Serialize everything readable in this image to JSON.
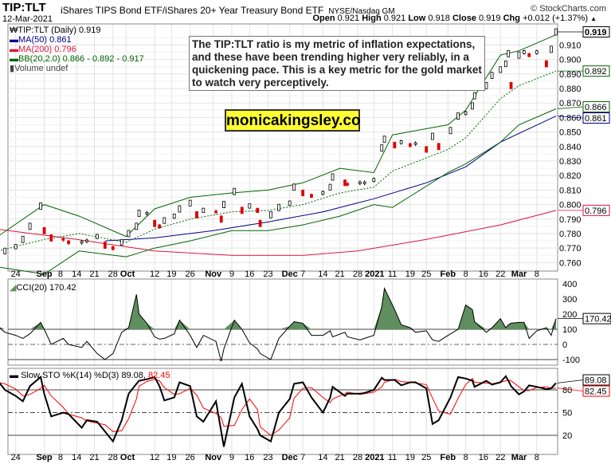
{
  "header": {
    "symbol": "TIP:TLT",
    "name": "iShares TIPS Bond ETF/iShares 20+ Year Treasury Bond ETF",
    "exchange": "NYSE/Nasdaq GM",
    "brand": "© StockCharts.com",
    "date": "12-Mar-2021",
    "open_label": "Open",
    "open": "0.921",
    "high_label": "High",
    "high": "0.921",
    "low_label": "Low",
    "low": "0.918",
    "close_label": "Close",
    "close": "0.919",
    "chg_label": "Chg",
    "chg": "+0.012 (+1.37%)",
    "chg_icon": "triangle-up-icon"
  },
  "legend": {
    "price": "TIP:TLT (Daily) 0.919",
    "ma50": "MA(50) 0.861",
    "ma200": "MA(200) 0.796",
    "bb": "BB(20,2.0) 0.866 - 0.892 - 0.917",
    "volume": "Volume undef",
    "cci": "CCI(20) 170.42",
    "sto": "Slow STO %K(14) %D(3) 89.08,",
    "sto_d": "82.45"
  },
  "annotation": {
    "text": "The TIP:TLT ratio is my metric of inflation expectations, and these have been trending higher very reliably, in a quickening pace. This is a key metric for the gold market to watch very perceptively.",
    "site": "monicakingsley.co"
  },
  "colors": {
    "ma50": "#00008b",
    "ma200": "#dc143c",
    "bb": "#006400",
    "cci_fill": "#5f8f5f",
    "cci_neg": "#c06070",
    "sto_k": "#000000",
    "sto_d": "#ff0000",
    "grid": "#dddddd"
  },
  "chart_data": [
    {
      "type": "candlestick",
      "title": "TIP:TLT (Daily)",
      "ylim": [
        0.755,
        0.922
      ],
      "grid": true,
      "legend_position": "top-left",
      "y_ticks": [
        "0.760",
        "0.770",
        "0.780",
        "0.790",
        "0.800",
        "0.810",
        "0.820",
        "0.830",
        "0.840",
        "0.850",
        "0.860",
        "0.870",
        "0.880",
        "0.890",
        "0.900",
        "0.910"
      ],
      "value_tags": [
        {
          "label": "0.919",
          "color": "#000000"
        },
        {
          "label": "0.892",
          "color": "#006400"
        },
        {
          "label": "0.866",
          "color": "#006400"
        },
        {
          "label": "0.861",
          "color": "#00008b"
        },
        {
          "label": "0.796",
          "color": "#dc143c"
        }
      ],
      "dates": [
        "2020-08-19",
        "2020-08-21",
        "2020-08-24",
        "2020-08-26",
        "2020-08-28",
        "2020-08-31",
        "2020-09-01",
        "2020-09-04",
        "2020-09-09",
        "2020-09-11",
        "2020-09-16",
        "2020-09-18",
        "2020-09-22",
        "2020-09-25",
        "2020-09-28",
        "2020-09-30",
        "2020-10-02",
        "2020-10-05",
        "2020-10-06",
        "2020-10-09",
        "2020-10-12",
        "2020-10-14",
        "2020-10-16",
        "2020-10-20",
        "2020-10-22",
        "2020-10-26",
        "2020-10-28",
        "2020-10-30",
        "2020-11-03",
        "2020-11-05",
        "2020-11-06",
        "2020-11-10",
        "2020-11-13",
        "2020-11-16",
        "2020-11-19",
        "2020-11-20",
        "2020-11-24",
        "2020-11-27",
        "2020-12-01",
        "2020-12-03",
        "2020-12-07",
        "2020-12-10",
        "2020-12-14",
        "2020-12-17",
        "2020-12-18",
        "2020-12-23",
        "2020-12-24",
        "2020-12-29",
        "2020-12-31",
        "2021-01-04",
        "2021-01-07",
        "2021-01-08",
        "2021-01-12",
        "2021-01-15",
        "2021-01-19",
        "2021-01-21",
        "2021-01-25",
        "2021-01-27",
        "2021-01-29",
        "2021-02-02",
        "2021-02-05",
        "2021-02-08",
        "2021-02-11",
        "2021-02-12",
        "2021-02-17",
        "2021-02-19",
        "2021-02-22",
        "2021-02-24",
        "2021-02-25",
        "2021-02-26",
        "2021-03-01",
        "2021-03-03",
        "2021-03-05",
        "2021-03-08",
        "2021-03-10",
        "2021-03-11",
        "2021-03-12"
      ],
      "close": [
        0.764,
        0.768,
        0.771,
        0.776,
        0.785,
        0.799,
        0.782,
        0.777,
        0.776,
        0.774,
        0.774,
        0.775,
        0.778,
        0.772,
        0.77,
        0.774,
        0.78,
        0.785,
        0.794,
        0.794,
        0.787,
        0.785,
        0.789,
        0.792,
        0.797,
        0.801,
        0.793,
        0.796,
        0.795,
        0.79,
        0.8,
        0.809,
        0.796,
        0.799,
        0.796,
        0.787,
        0.793,
        0.798,
        0.801,
        0.812,
        0.808,
        0.806,
        0.808,
        0.812,
        0.819,
        0.815,
        0.814,
        0.815,
        0.815,
        0.817,
        0.839,
        0.845,
        0.841,
        0.843,
        0.841,
        0.842,
        0.838,
        0.847,
        0.84,
        0.851,
        0.861,
        0.863,
        0.868,
        0.875,
        0.882,
        0.889,
        0.893,
        0.897,
        0.904,
        0.882,
        0.903,
        0.905,
        0.903,
        0.905,
        0.897,
        0.907,
        0.919
      ],
      "ma50": {
        "dates": [
          "2020-09-25",
          "2020-10-12",
          "2020-11-02",
          "2020-11-23",
          "2020-12-14",
          "2021-01-04",
          "2021-01-25",
          "2021-02-08",
          "2021-02-22",
          "2021-03-12"
        ],
        "values": [
          0.775,
          0.777,
          0.782,
          0.788,
          0.795,
          0.804,
          0.815,
          0.826,
          0.843,
          0.861
        ]
      },
      "ma200": {
        "dates": [
          "2020-08-19",
          "2020-09-14",
          "2020-10-12",
          "2020-11-09",
          "2020-12-07",
          "2020-12-28",
          "2021-01-25",
          "2021-02-22",
          "2021-03-12"
        ],
        "values": [
          0.783,
          0.776,
          0.768,
          0.765,
          0.765,
          0.768,
          0.776,
          0.786,
          0.796
        ]
      },
      "bb": {
        "dates": [
          "2020-08-19",
          "2020-09-01",
          "2020-09-15",
          "2020-10-01",
          "2020-10-12",
          "2020-10-26",
          "2020-11-09",
          "2020-11-23",
          "2020-12-07",
          "2020-12-21",
          "2021-01-04",
          "2021-01-11",
          "2021-02-01",
          "2021-02-08",
          "2021-02-22",
          "2021-03-01",
          "2021-03-12"
        ],
        "upper": [
          0.778,
          0.8,
          0.792,
          0.778,
          0.797,
          0.805,
          0.808,
          0.81,
          0.815,
          0.825,
          0.822,
          0.848,
          0.855,
          0.865,
          0.903,
          0.906,
          0.917
        ],
        "middle": [
          0.768,
          0.776,
          0.78,
          0.774,
          0.783,
          0.79,
          0.795,
          0.796,
          0.8,
          0.808,
          0.812,
          0.823,
          0.838,
          0.846,
          0.873,
          0.882,
          0.892
        ],
        "lower": [
          0.757,
          0.752,
          0.768,
          0.764,
          0.77,
          0.775,
          0.782,
          0.782,
          0.786,
          0.792,
          0.8,
          0.798,
          0.822,
          0.828,
          0.843,
          0.855,
          0.866
        ]
      }
    },
    {
      "type": "area",
      "title": "CCI(20)",
      "ylim": [
        -150,
        420
      ],
      "y_ticks": [
        "400",
        "300",
        "200",
        "100",
        "0",
        "-100"
      ],
      "ref_lines": [
        100,
        0,
        -100
      ],
      "last_tag": "170.42",
      "values": [
        120,
        80,
        60,
        40,
        70,
        145,
        100,
        0,
        40,
        0,
        -20,
        20,
        -60,
        -100,
        -60,
        80,
        110,
        330,
        200,
        140,
        50,
        35,
        40,
        70,
        160,
        60,
        -20,
        60,
        20,
        -110,
        -30,
        160,
        100,
        10,
        -30,
        -60,
        -100,
        40,
        120,
        150,
        140,
        60,
        60,
        90,
        50,
        80,
        50,
        30,
        40,
        60,
        250,
        370,
        230,
        130,
        110,
        80,
        90,
        30,
        20,
        70,
        100,
        260,
        230,
        150,
        80,
        110,
        170,
        110,
        130,
        140,
        145,
        145,
        40,
        90,
        110,
        60,
        170.42
      ]
    },
    {
      "type": "line",
      "title": "Slow STO %K(14) %D(3)",
      "ylim": [
        -5,
        105
      ],
      "y_ticks": [
        "80",
        "50",
        "20"
      ],
      "ref_lines": [
        80,
        50,
        20
      ],
      "last_tags": [
        "89.08",
        "82.45"
      ],
      "series": [
        {
          "name": "%K",
          "values": [
            92,
            80,
            72,
            65,
            85,
            97,
            75,
            45,
            50,
            48,
            30,
            40,
            38,
            25,
            12,
            40,
            75,
            88,
            92,
            94,
            97,
            85,
            66,
            70,
            90,
            85,
            45,
            38,
            65,
            25,
            5,
            70,
            88,
            45,
            28,
            20,
            12,
            50,
            68,
            88,
            90,
            70,
            50,
            70,
            84,
            72,
            75,
            75,
            76,
            80,
            96,
            93,
            93,
            86,
            90,
            90,
            82,
            35,
            40,
            70,
            97,
            95,
            92,
            84,
            92,
            87,
            90,
            98,
            92,
            85,
            74,
            78,
            86,
            84,
            81,
            82,
            89.08
          ]
        },
        {
          "name": "%D",
          "values": [
            90,
            88,
            81,
            72,
            74,
            82,
            86,
            72,
            57,
            48,
            43,
            39,
            36,
            34,
            25,
            26,
            42,
            68,
            85,
            91,
            94,
            92,
            83,
            74,
            75,
            82,
            73,
            56,
            49,
            43,
            32,
            33,
            54,
            68,
            54,
            31,
            20,
            27,
            43,
            69,
            82,
            83,
            70,
            63,
            68,
            75,
            77,
            74,
            75,
            77,
            84,
            90,
            94,
            91,
            90,
            89,
            87,
            69,
            52,
            48,
            69,
            87,
            95,
            90,
            89,
            88,
            90,
            92,
            93,
            92,
            84,
            79,
            79,
            83,
            84,
            82,
            82.45
          ]
        }
      ]
    }
  ],
  "x_axis": {
    "ticks": [
      {
        "d": "2020-08-24",
        "l": "24"
      },
      {
        "d": "2020-09-01",
        "l": "Sep",
        "b": true
      },
      {
        "d": "2020-09-08",
        "l": "8"
      },
      {
        "d": "2020-09-14",
        "l": "14"
      },
      {
        "d": "2020-09-21",
        "l": "21"
      },
      {
        "d": "2020-09-28",
        "l": "28"
      },
      {
        "d": "2020-10-01",
        "l": "Oct",
        "b": true
      },
      {
        "d": "2020-10-12",
        "l": "12"
      },
      {
        "d": "2020-10-19",
        "l": "19"
      },
      {
        "d": "2020-10-26",
        "l": "26"
      },
      {
        "d": "2020-11-02",
        "l": "Nov",
        "b": true
      },
      {
        "d": "2020-11-09",
        "l": "9"
      },
      {
        "d": "2020-11-16",
        "l": "16"
      },
      {
        "d": "2020-11-23",
        "l": "23"
      },
      {
        "d": "2020-12-01",
        "l": "Dec",
        "b": true
      },
      {
        "d": "2020-12-07",
        "l": "7"
      },
      {
        "d": "2020-12-14",
        "l": "14"
      },
      {
        "d": "2020-12-21",
        "l": "21"
      },
      {
        "d": "2020-12-28",
        "l": "28"
      },
      {
        "d": "2021-01-04",
        "l": "2021",
        "b": true
      },
      {
        "d": "2021-01-11",
        "l": "11"
      },
      {
        "d": "2021-01-19",
        "l": "19"
      },
      {
        "d": "2021-01-25",
        "l": "25"
      },
      {
        "d": "2021-02-01",
        "l": "Feb",
        "b": true
      },
      {
        "d": "2021-02-08",
        "l": "8"
      },
      {
        "d": "2021-02-16",
        "l": "16"
      },
      {
        "d": "2021-02-22",
        "l": "22"
      },
      {
        "d": "2021-03-01",
        "l": "Mar",
        "b": true
      },
      {
        "d": "2021-03-08",
        "l": "8"
      },
      {
        "d": "2021-03-12",
        "l": ""
      }
    ]
  }
}
